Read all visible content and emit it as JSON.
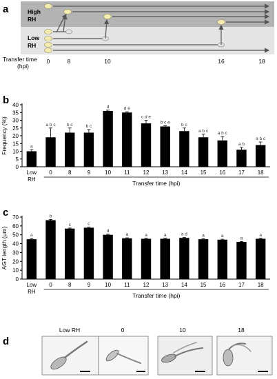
{
  "panels": {
    "a": "a",
    "b": "b",
    "c": "c",
    "d": "d"
  },
  "panel_a": {
    "high_rh_label_line1": "High",
    "high_rh_label_line2": "RH",
    "low_rh_label_line1": "Low",
    "low_rh_label_line2": "RH",
    "axis_label_line1": "Transfer time",
    "axis_label_line2": "(hpi)",
    "ticks": [
      "0",
      "8",
      "10",
      "16",
      "18"
    ],
    "colors": {
      "high_band": "#b3b3b3",
      "low_band": "#e0e0e0",
      "spore": "#f3ebb0",
      "arrow": "#555555"
    }
  },
  "chart_data": [
    {
      "type": "bar",
      "ylabel": "Frequency (%)",
      "xlabel": "Transfer time (hpi)",
      "control_label_line1": "Low",
      "control_label_line2": "RH",
      "categories": [
        "Low RH",
        "0",
        "8",
        "9",
        "10",
        "11",
        "12",
        "13",
        "14",
        "15",
        "16",
        "17",
        "18"
      ],
      "values": [
        10,
        19,
        22,
        22,
        36,
        35,
        28,
        26,
        23,
        19,
        17,
        11,
        14
      ],
      "errors": [
        1,
        6,
        3,
        2,
        0.5,
        0.5,
        2,
        0.5,
        2,
        2,
        2.5,
        1.5,
        2
      ],
      "letters": [
        "a",
        "a b c",
        "b c",
        "b c",
        "d",
        "d e",
        "c d e",
        "b c e",
        "b c",
        "a b c",
        "a b c",
        "a b",
        "a b c"
      ],
      "ylim": [
        0,
        40
      ],
      "yticks": [
        0,
        5,
        10,
        15,
        20,
        25,
        30,
        35,
        40
      ]
    },
    {
      "type": "bar",
      "ylabel": "AGT length (μm)",
      "xlabel": "Transfer time (hpi)",
      "control_label_line1": "Low",
      "control_label_line2": "RH",
      "categories": [
        "Low RH",
        "0",
        "8",
        "9",
        "10",
        "11",
        "12",
        "13",
        "14",
        "15",
        "16",
        "17",
        "18"
      ],
      "values": [
        45,
        66.5,
        57,
        58,
        50,
        46,
        45.5,
        45.5,
        46.5,
        45,
        44.5,
        42,
        45.5
      ],
      "errors": [
        0.7,
        0.8,
        0.6,
        0.6,
        0.6,
        0.6,
        0.5,
        0.5,
        0.5,
        0.5,
        0.5,
        0.5,
        0.5
      ],
      "letters": [
        "a",
        "b",
        "c",
        "c",
        "d",
        "a",
        "a",
        "a",
        "a d",
        "a",
        "a",
        "a",
        "a"
      ],
      "ylim": [
        0,
        70
      ],
      "yticks": [
        0,
        10,
        20,
        30,
        40,
        50,
        60,
        70
      ]
    }
  ],
  "panel_d": {
    "labels": [
      "Low RH",
      "0",
      "10",
      "18"
    ]
  }
}
